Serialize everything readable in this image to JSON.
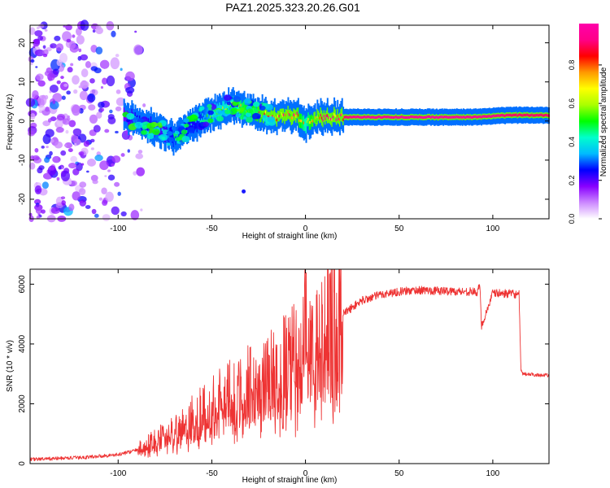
{
  "figure_title": "PAZ1.2025.323.20.26.G01",
  "colorbar": {
    "label": "Normalized spectral amplitude",
    "ticks": [
      0.0,
      0.2,
      0.4,
      0.6,
      0.8
    ],
    "tick_labels": [
      "0.0",
      "0.2",
      "0.4",
      "0.6",
      "0.8"
    ],
    "colors": [
      "#ffffff",
      "#cc88ff",
      "#8800ff",
      "#0000ff",
      "#00bbff",
      "#00ffcc",
      "#00ff00",
      "#aaff00",
      "#ffff00",
      "#ff9900",
      "#ff0000",
      "#ff0088",
      "#ff00aa"
    ]
  },
  "trace_color": "#ee3333",
  "chart_data": [
    {
      "type": "heatmap",
      "title": "",
      "xlabel": "Height of straight line (km)",
      "ylabel": "Frequency (Hz)",
      "xlim": [
        -147,
        130
      ],
      "ylim": [
        -25,
        24.5
      ],
      "x_ticks": [
        -100,
        -50,
        0,
        50,
        100
      ],
      "x_tick_labels": [
        "-100",
        "-50",
        "0",
        "50",
        "100"
      ],
      "y_ticks": [
        -20,
        -10,
        0,
        10,
        20
      ],
      "y_tick_labels": [
        "-20",
        "-10",
        "0",
        "10",
        "20"
      ],
      "ridge": {
        "x": [
          -97,
          -90,
          -85,
          -80,
          -75,
          -70,
          -65,
          -60,
          -55,
          -50,
          -45,
          -40,
          -35,
          -30,
          -25,
          -20,
          -15,
          -10,
          -5,
          0,
          5,
          10,
          20,
          30,
          50,
          70,
          90,
          110,
          125,
          130
        ],
        "y": [
          1,
          0.5,
          -1,
          -2,
          -3,
          -4.5,
          -2.5,
          -1,
          1,
          2,
          3,
          4,
          3.5,
          2.5,
          2,
          1.5,
          1,
          1.5,
          1.5,
          -0.5,
          0.5,
          1,
          1,
          1,
          1,
          1,
          1,
          1.5,
          1.5,
          1.5
        ],
        "amplitude": [
          0.25,
          0.35,
          0.35,
          0.3,
          0.3,
          0.4,
          0.35,
          0.35,
          0.4,
          0.5,
          0.55,
          0.6,
          0.65,
          0.7,
          0.75,
          0.8,
          0.8,
          0.85,
          0.8,
          0.6,
          0.8,
          0.85,
          0.9,
          0.95,
          0.95,
          0.97,
          0.95,
          0.9,
          0.9,
          0.9
        ]
      },
      "noise_region": {
        "x_range": [
          -147,
          -85
        ],
        "y_range": [
          -25,
          24.5
        ],
        "amplitude_range": [
          0.05,
          0.25
        ]
      }
    },
    {
      "type": "line",
      "title": "",
      "xlabel": "Height of straight line (km)",
      "ylabel": "SNR (10 * v/v)",
      "xlim": [
        -147,
        130
      ],
      "ylim": [
        0,
        6500
      ],
      "x_ticks": [
        -100,
        -50,
        0,
        50,
        100
      ],
      "x_tick_labels": [
        "-100",
        "-50",
        "0",
        "50",
        "100"
      ],
      "y_ticks": [
        0,
        2000,
        4000,
        6000
      ],
      "y_tick_labels": [
        "0",
        "2000",
        "4000",
        "6000"
      ],
      "series": [
        {
          "name": "SNR",
          "x": [
            -147,
            -140,
            -130,
            -120,
            -110,
            -100,
            -90,
            -80,
            -70,
            -60,
            -50,
            -40,
            -30,
            -20,
            -10,
            -5,
            -1,
            0,
            1,
            2,
            5,
            10,
            20,
            30,
            40,
            50,
            60,
            70,
            80,
            90,
            92,
            93,
            94,
            100,
            110,
            114,
            115,
            116,
            120,
            130
          ],
          "y": [
            150,
            150,
            180,
            200,
            250,
            300,
            450,
            750,
            1100,
            1500,
            1900,
            2250,
            2600,
            2900,
            3300,
            3500,
            3700,
            6400,
            3300,
            3550,
            3900,
            4350,
            5000,
            5450,
            5650,
            5750,
            5800,
            5780,
            5760,
            5750,
            5700,
            6050,
            4600,
            5700,
            5680,
            5650,
            3100,
            3000,
            2980,
            2950
          ]
        }
      ],
      "annotations": [
        "spike at 0 km to 6400",
        "drop at 115 km from 5650 to 3100"
      ]
    }
  ]
}
